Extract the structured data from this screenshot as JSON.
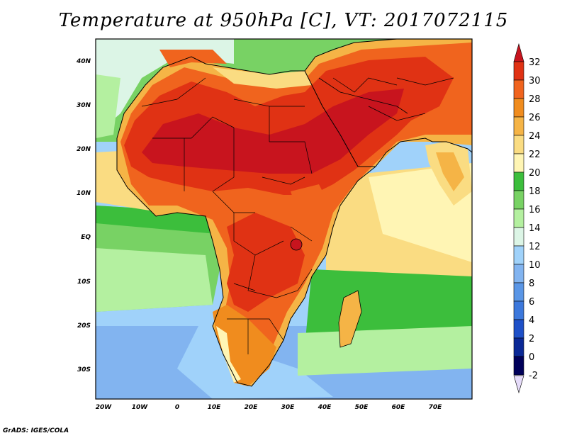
{
  "title": "Temperature at 950hPa [C], VT: 2017072115",
  "footer": "GrADS: IGES/COLA",
  "lat_ticks": [
    "40N",
    "30N",
    "20N",
    "10N",
    "EQ",
    "10S",
    "20S",
    "30S"
  ],
  "lon_ticks": [
    "20W",
    "10W",
    "0",
    "10E",
    "20E",
    "30E",
    "40E",
    "50E",
    "60E",
    "70E"
  ],
  "colorbar": {
    "labels": [
      "32",
      "30",
      "28",
      "26",
      "24",
      "22",
      "20",
      "18",
      "16",
      "14",
      "12",
      "10",
      "8",
      "6",
      "4",
      "2",
      "0",
      "-2"
    ],
    "colors": {
      "above_32": "#c8141e",
      "30_32": "#e03214",
      "28_30": "#f0641e",
      "26_28": "#f08c1e",
      "24_26": "#f5b446",
      "22_24": "#fadc82",
      "20_22": "#fff5b4",
      "18_20": "#3cbe3c",
      "16_18": "#78d264",
      "14_16": "#b4f0a0",
      "12_14": "#dcf5e6",
      "10_12": "#a0d2fa",
      "8_10": "#82b4f0",
      "6_8": "#5a96e6",
      "4_6": "#3c78dc",
      "2_4": "#1e50c8",
      "0_2": "#0a2896",
      "below_0": "#00005a",
      "below_-2": "#e6dcfa"
    }
  }
}
